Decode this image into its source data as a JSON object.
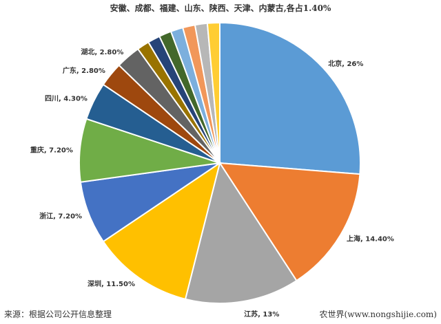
{
  "chart_data": {
    "type": "pie",
    "title": "安徽、成都、福建、山东、陕西、天津、内蒙古,各占1.40%",
    "categories": [
      "北京",
      "上海",
      "江苏",
      "深圳",
      "浙江",
      "重庆",
      "四川",
      "广东",
      "湖北",
      "安徽",
      "成都",
      "福建",
      "山东",
      "陕西",
      "天津",
      "内蒙古"
    ],
    "values": [
      26,
      14.4,
      13,
      11.5,
      7.2,
      7.2,
      4.3,
      2.8,
      2.8,
      1.4,
      1.4,
      1.4,
      1.4,
      1.4,
      1.4,
      1.4
    ],
    "data_labels": [
      "北京, 26%",
      "上海, 14.40%",
      "江苏, 13%",
      "深圳, 11.50%",
      "浙江, 7.20%",
      "重庆, 7.20%",
      "四川, 4.30%",
      "广东, 2.80%",
      "湖北, 2.80%",
      "",
      "",
      "",
      "",
      "",
      "",
      ""
    ],
    "colors": [
      "#5B9BD5",
      "#ED7D31",
      "#A5A5A5",
      "#FFC000",
      "#4472C4",
      "#70AD47",
      "#255E91",
      "#9E480E",
      "#636363",
      "#997300",
      "#264478",
      "#43682B",
      "#7CAFDD",
      "#F1975A",
      "#B7B7B7",
      "#FFCD33"
    ],
    "start_angle": "12 o'clock, clockwise"
  },
  "footer": {
    "source": "来源：根据公司公开信息整理",
    "credit": "农世界(www.nongshijie.com)"
  }
}
